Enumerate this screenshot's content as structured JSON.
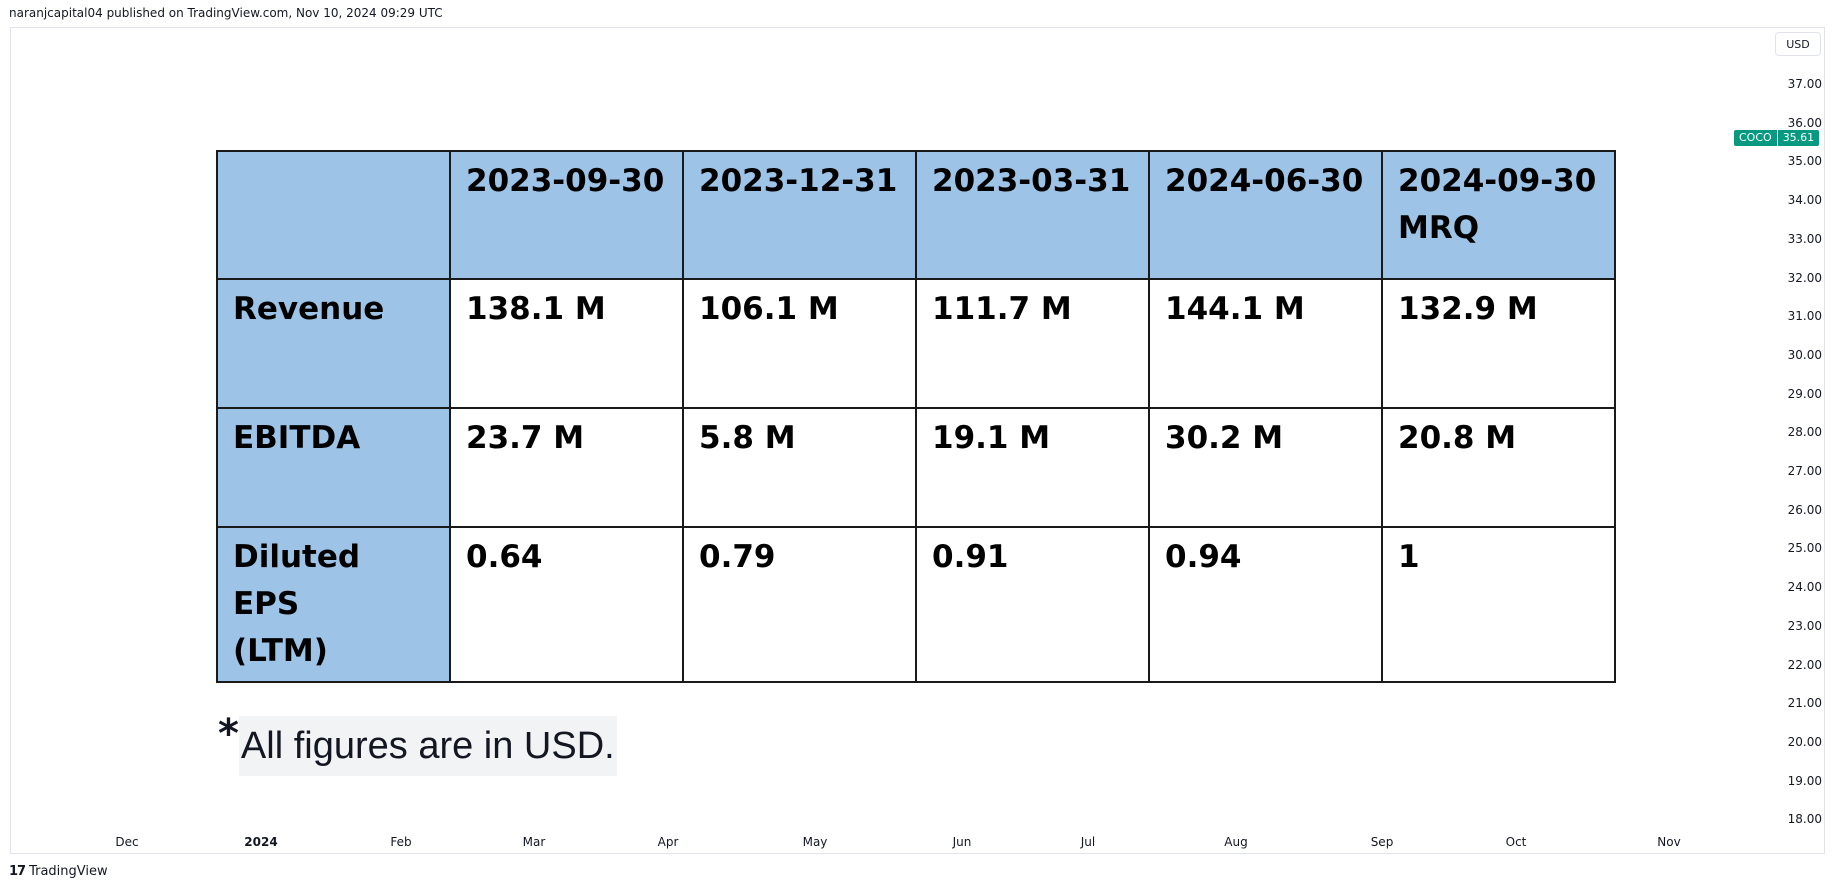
{
  "header": {
    "publisher_line": "naranjcapital04 published on TradingView.com, Nov 10, 2024 09:29 UTC"
  },
  "price_scale": {
    "currency": "USD",
    "ticks": [
      "37.00",
      "36.00",
      "35.00",
      "34.00",
      "33.00",
      "32.00",
      "31.00",
      "30.00",
      "29.00",
      "28.00",
      "27.00",
      "26.00",
      "25.00",
      "24.00",
      "23.00",
      "22.00",
      "21.00",
      "20.00",
      "19.00",
      "18.00"
    ],
    "symbol": "COCO",
    "last_price": "35.61",
    "tag_color": "#089981"
  },
  "time_scale": {
    "ticks": [
      "Dec",
      "2024",
      "Feb",
      "Mar",
      "Apr",
      "May",
      "Jun",
      "Jul",
      "Aug",
      "Sep",
      "Oct",
      "Nov"
    ]
  },
  "footer": {
    "logo_glyph": "17",
    "brand": "TradingView"
  },
  "chart_data": {
    "type": "table",
    "columns": [
      "",
      "2023-09-30",
      "2023-12-31",
      "2023-03-31",
      "2024-06-30",
      "2024-09-30 MRQ"
    ],
    "rows": [
      {
        "label": "Revenue",
        "values": [
          "138.1 M",
          "106.1 M",
          "111.7 M",
          "144.1 M",
          "132.9 M"
        ]
      },
      {
        "label": "EBITDA",
        "values": [
          "23.7 M",
          "5.8 M",
          "19.1 M",
          "30.2 M",
          "20.8 M"
        ]
      },
      {
        "label": "Diluted EPS (LTM)",
        "values": [
          "0.64",
          "0.79",
          "0.91",
          "0.94",
          "1"
        ]
      }
    ],
    "header_color": "#9dc3e6",
    "note_marker": "*",
    "note": "All figures are in USD."
  }
}
